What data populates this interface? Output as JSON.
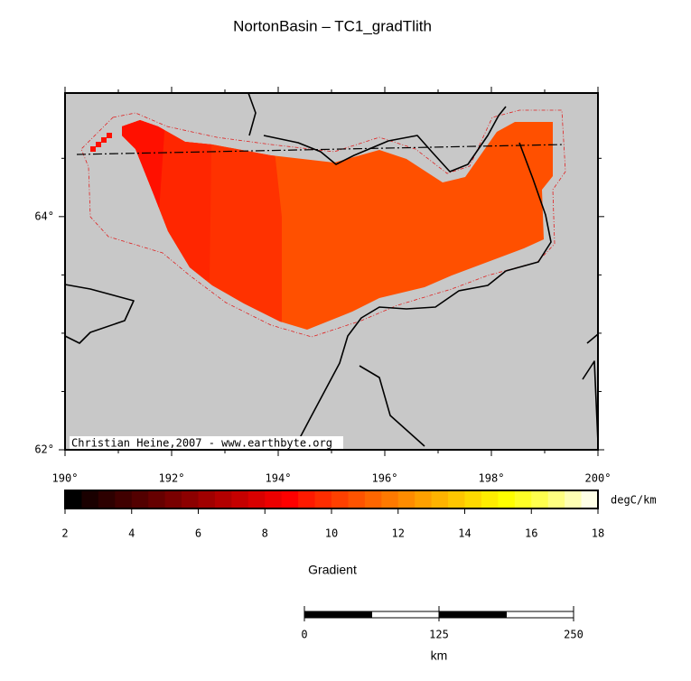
{
  "title": "NortonBasin – TC1_gradTlith",
  "map": {
    "xlim": [
      190,
      200
    ],
    "ylim": [
      62,
      65.06
    ],
    "xticks": [
      {
        "value": 190,
        "label": "190°"
      },
      {
        "value": 192,
        "label": "192°"
      },
      {
        "value": 194,
        "label": "194°"
      },
      {
        "value": 196,
        "label": "196°"
      },
      {
        "value": 198,
        "label": "198°"
      },
      {
        "value": 200,
        "label": "200°"
      }
    ],
    "xminor": [
      191,
      193,
      195,
      197,
      199
    ],
    "yticks": [
      {
        "value": 62,
        "label": "62°"
      },
      {
        "value": 64,
        "label": "64°"
      }
    ],
    "yminor": [
      62.5,
      63,
      63.5,
      64.5
    ],
    "credit": "Christian Heine,2007 - www.earthbyte.org"
  },
  "colorbar": {
    "range": [
      2,
      18
    ],
    "colors": [
      "#000000",
      "#1a0000",
      "#2d0000",
      "#400000",
      "#530000",
      "#660000",
      "#790000",
      "#8c0000",
      "#a00000",
      "#b30000",
      "#c60000",
      "#d90000",
      "#ec0000",
      "#ff0000",
      "#ff1a00",
      "#ff2d00",
      "#ff4000",
      "#ff5300",
      "#ff6600",
      "#ff7900",
      "#ff8c00",
      "#ffa000",
      "#ffb300",
      "#ffc600",
      "#ffd900",
      "#ffec00",
      "#ffff00",
      "#ffff26",
      "#ffff4d",
      "#ffff80",
      "#ffffb3",
      "#ffffe6"
    ],
    "ticks": [
      2,
      4,
      6,
      8,
      10,
      12,
      14,
      16,
      18
    ],
    "unit": "degC/km",
    "label": "Gradient"
  },
  "scalebar": {
    "range": [
      0,
      250
    ],
    "ticks": [
      0,
      125,
      250
    ],
    "unit": "km"
  }
}
